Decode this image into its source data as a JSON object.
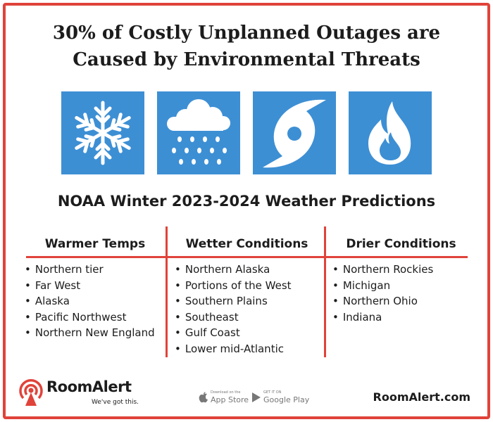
{
  "headline": {
    "line1": "30% of Costly Unplanned Outages are",
    "line2": "Caused by Environmental Threats"
  },
  "icons": [
    "snowflake-icon",
    "rain-cloud-icon",
    "hurricane-icon",
    "fire-icon"
  ],
  "subtitle": "NOAA Winter 2023-2024 Weather Predictions",
  "columns": [
    {
      "heading": "Warmer Temps",
      "items": [
        "Northern tier",
        "Far West",
        "Alaska",
        "Pacific Northwest",
        "Northern New England"
      ]
    },
    {
      "heading": "Wetter Conditions",
      "items": [
        "Northern Alaska",
        "Portions of the West",
        "Southern Plains",
        "Southeast",
        "Gulf Coast",
        "Lower mid-Atlantic"
      ]
    },
    {
      "heading": "Drier Conditions",
      "items": [
        "Northern Rockies",
        "Michigan",
        "Northern Ohio",
        "Indiana"
      ]
    }
  ],
  "footer": {
    "brand": "RoomAlert",
    "tagline": "We've got this.",
    "app_store": {
      "small": "Download on the",
      "big": "App Store"
    },
    "google_play": {
      "small": "GET IT ON",
      "big": "Google Play"
    },
    "website": "RoomAlert.com"
  },
  "colors": {
    "accent": "#e0433a",
    "tile": "#3d8fd4",
    "text": "#1c1c1c"
  }
}
